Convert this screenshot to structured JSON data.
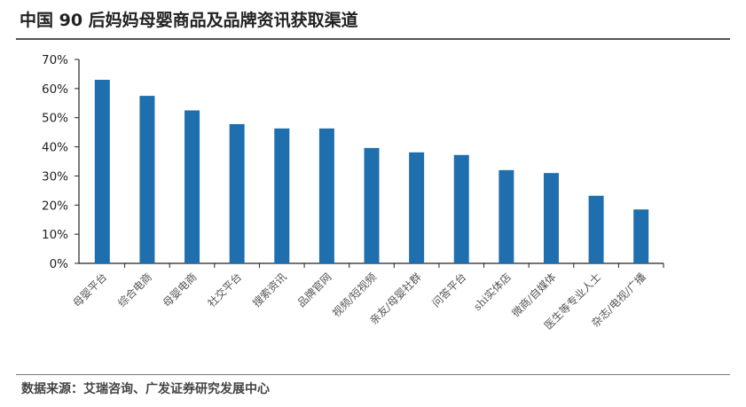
{
  "header": {
    "title": "中国 90 后妈妈母婴商品及品牌资讯获取渠道"
  },
  "footer": {
    "source": "数据来源：艾瑞咨询、广发证券研究发展中心"
  },
  "chart_data": {
    "type": "bar",
    "categories": [
      "母婴平台",
      "综合电商",
      "母婴电商",
      "社交平台",
      "搜索资讯",
      "品牌官网",
      "视频/短视频",
      "亲友/母婴社群",
      "问答平台",
      "shi实体店",
      "微商/自媒体",
      "医生等专业人士",
      "杂志/电视/广播"
    ],
    "values": [
      63,
      57.5,
      52.5,
      47.8,
      46.3,
      46.3,
      39.6,
      38.1,
      37.2,
      32,
      31,
      23.2,
      18.5
    ],
    "ylim": [
      0,
      70
    ],
    "yticks": [
      "0%",
      "10%",
      "20%",
      "30%",
      "40%",
      "50%",
      "60%",
      "70%"
    ],
    "bar_color": "#1f6fae",
    "grid": false
  }
}
